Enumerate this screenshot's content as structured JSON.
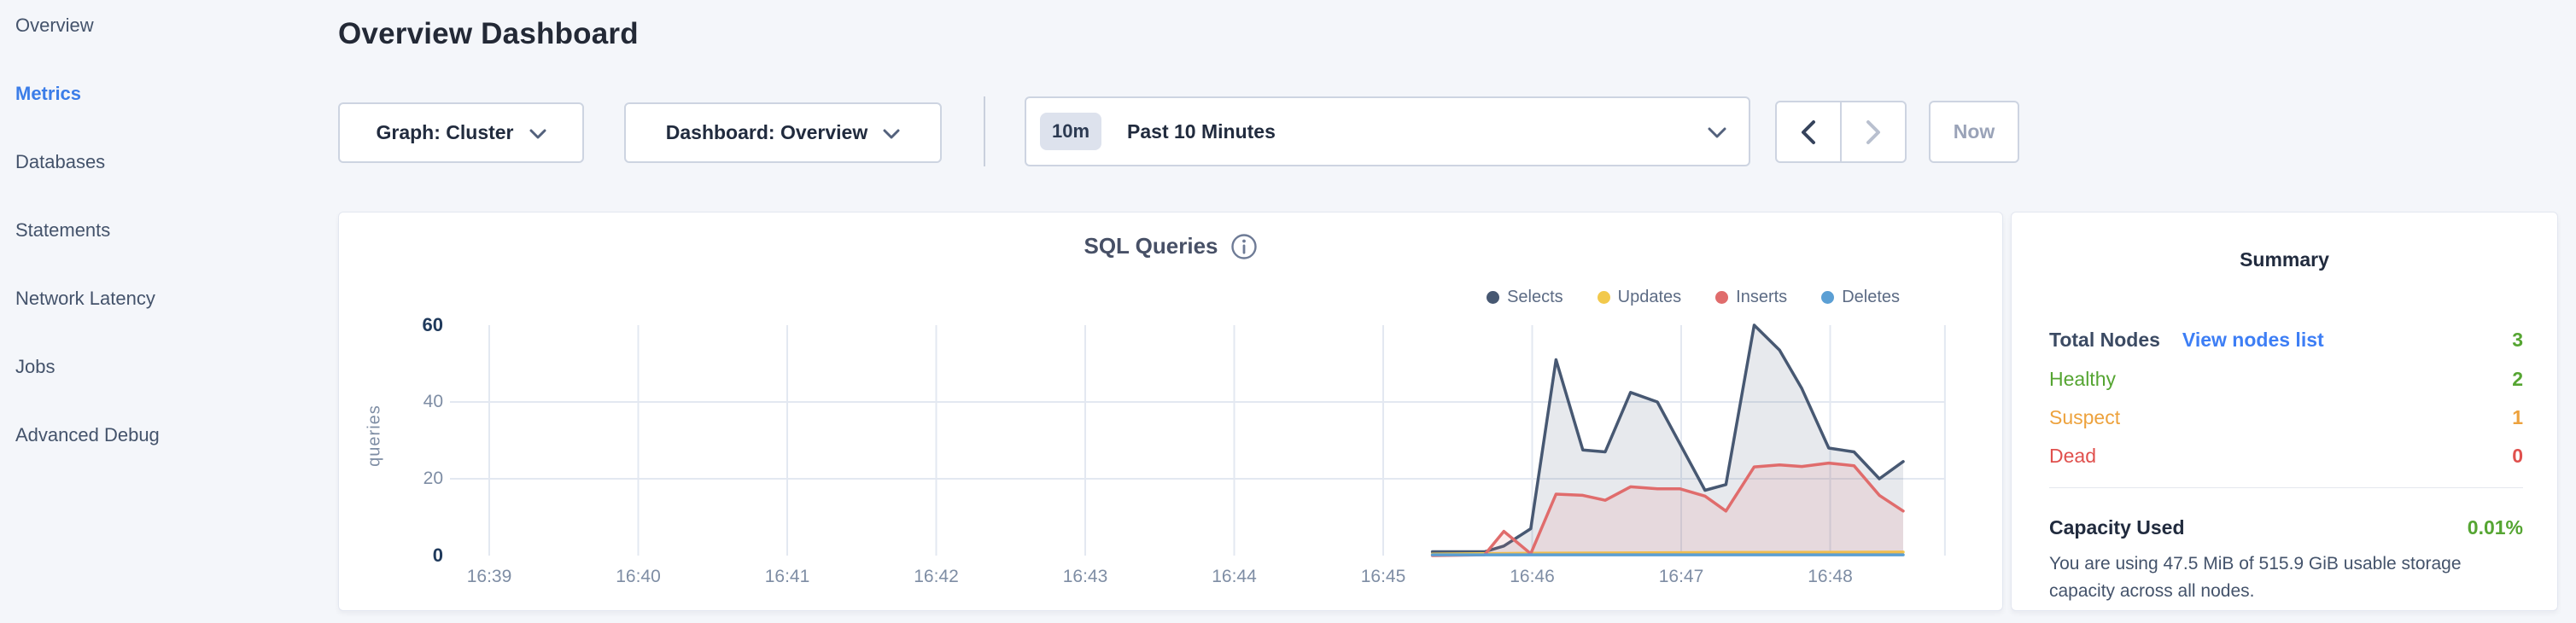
{
  "sidebar": {
    "items": [
      {
        "label": "Overview",
        "active": false
      },
      {
        "label": "Metrics",
        "active": true
      },
      {
        "label": "Databases",
        "active": false
      },
      {
        "label": "Statements",
        "active": false
      },
      {
        "label": "Network Latency",
        "active": false
      },
      {
        "label": "Jobs",
        "active": false
      },
      {
        "label": "Advanced Debug",
        "active": false
      }
    ]
  },
  "header": {
    "title": "Overview Dashboard"
  },
  "toolbar": {
    "graph_dropdown_label": "Graph: Cluster",
    "dashboard_dropdown_label": "Dashboard: Overview",
    "time_picker": {
      "badge": "10m",
      "label": "Past 10 Minutes"
    },
    "now_label": "Now"
  },
  "chart_data": {
    "type": "area",
    "title": "SQL Queries",
    "ylabel": "queries",
    "xlabel": "",
    "x_ticks": [
      "16:39",
      "16:40",
      "16:41",
      "16:42",
      "16:43",
      "16:44",
      "16:45",
      "16:46",
      "16:47",
      "16:48"
    ],
    "y_ticks": [
      0,
      20,
      40,
      60
    ],
    "ylim": [
      0,
      60
    ],
    "x_domain_minutes": [
      0,
      9.77
    ],
    "grid": true,
    "legend_position": "top-right",
    "series": [
      {
        "name": "Selects",
        "color": "#475872",
        "fill_opacity": 0.13,
        "points": [
          [
            6.33,
            1
          ],
          [
            6.68,
            1
          ],
          [
            6.81,
            2.5
          ],
          [
            6.99,
            7
          ],
          [
            7.16,
            51
          ],
          [
            7.34,
            27.5
          ],
          [
            7.49,
            27
          ],
          [
            7.66,
            42.5
          ],
          [
            7.84,
            40
          ],
          [
            8.16,
            17
          ],
          [
            8.3,
            18.5
          ],
          [
            8.49,
            60
          ],
          [
            8.66,
            53.5
          ],
          [
            8.81,
            43.5
          ],
          [
            8.99,
            28
          ],
          [
            9.16,
            27
          ],
          [
            9.33,
            20
          ],
          [
            9.49,
            24.5
          ]
        ]
      },
      {
        "name": "Updates",
        "color": "#f2c94c",
        "fill_opacity": 0.2,
        "points": [
          [
            6.33,
            0.4
          ],
          [
            6.99,
            0.6
          ],
          [
            8.3,
            0.8
          ],
          [
            9.49,
            0.9
          ]
        ]
      },
      {
        "name": "Inserts",
        "color": "#e06c6c",
        "fill_opacity": 0.12,
        "points": [
          [
            6.33,
            0
          ],
          [
            6.68,
            0.2
          ],
          [
            6.81,
            6.3
          ],
          [
            6.99,
            0.5
          ],
          [
            7.16,
            16
          ],
          [
            7.34,
            15.7
          ],
          [
            7.49,
            14.4
          ],
          [
            7.66,
            17.9
          ],
          [
            7.84,
            17.4
          ],
          [
            7.99,
            17.4
          ],
          [
            8.16,
            15.5
          ],
          [
            8.3,
            11.6
          ],
          [
            8.49,
            23.1
          ],
          [
            8.66,
            23.6
          ],
          [
            8.81,
            23.2
          ],
          [
            8.99,
            24.1
          ],
          [
            9.16,
            23.4
          ],
          [
            9.33,
            15.7
          ],
          [
            9.49,
            11.6
          ]
        ]
      },
      {
        "name": "Deletes",
        "color": "#5b9fd4",
        "fill_opacity": 0.2,
        "points": [
          [
            6.33,
            0.2
          ],
          [
            9.49,
            0.2
          ]
        ]
      }
    ]
  },
  "summary": {
    "title": "Summary",
    "total_nodes_label": "Total Nodes",
    "view_nodes_link": "View nodes list",
    "total_nodes_value": "3",
    "total_nodes_color": "#55a532",
    "rows": [
      {
        "label": "Healthy",
        "value": "2",
        "color": "#55a532"
      },
      {
        "label": "Suspect",
        "value": "1",
        "color": "#eda23d"
      },
      {
        "label": "Dead",
        "value": "0",
        "color": "#e0504d"
      }
    ],
    "capacity_label": "Capacity Used",
    "capacity_value": "0.01%",
    "capacity_color": "#55a532",
    "capacity_description": "You are using 47.5 MiB of 515.9 GiB usable storage capacity across all nodes."
  },
  "colors": {
    "accent_blue": "#3b7de8",
    "page_background": "#f4f6fa",
    "grid_line": "#e3e8f1"
  }
}
